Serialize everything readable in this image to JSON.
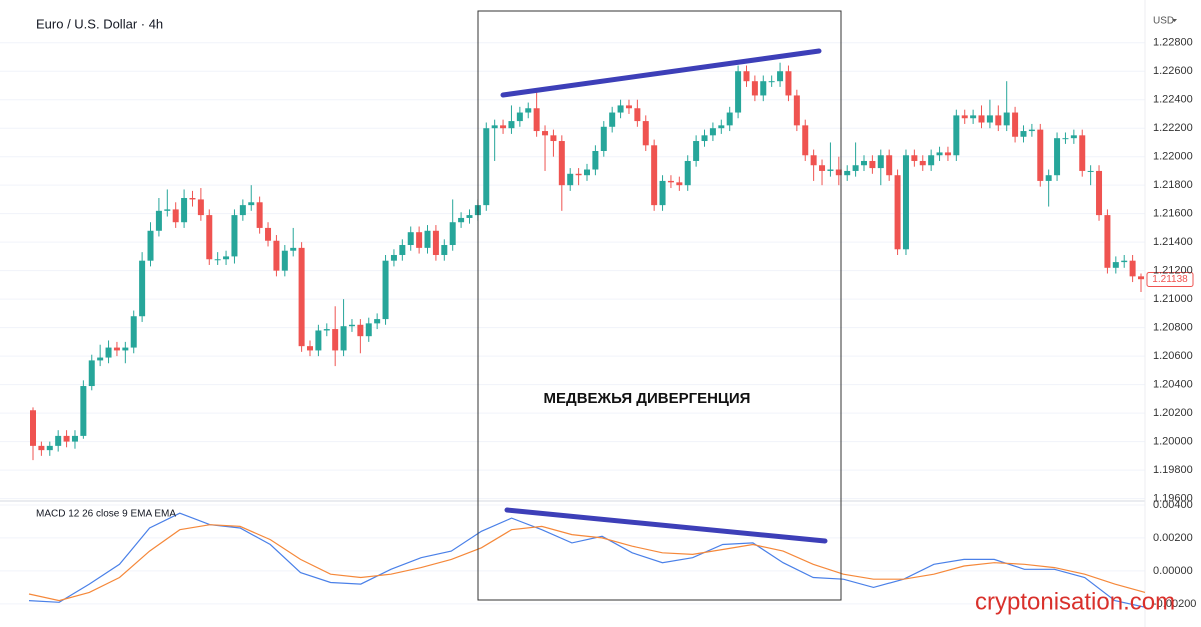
{
  "chart_data": [
    {
      "type": "candlestick",
      "title": "Euro / U.S. Dollar · 4h",
      "currency": "USD",
      "annotation": "МЕДВЕЖЬЯ ДИВЕРГЕНЦИЯ",
      "watermark": "cryptonisation.com",
      "up_color": "#26a69a",
      "down_color": "#ef5350",
      "last_price": 1.21138,
      "open": [
        1.2022,
        1.1997,
        1.1994,
        1.1997,
        1.2004,
        1.2,
        1.2004,
        1.2039,
        1.2057,
        1.2059,
        1.2066,
        1.2064,
        1.2066,
        1.2088,
        1.2127,
        1.2148,
        1.2162,
        1.2163,
        1.2154,
        1.2171,
        1.217,
        1.2159,
        1.2128,
        1.2128,
        1.213,
        1.2159,
        1.2166,
        1.2168,
        1.215,
        1.2141,
        1.212,
        1.2134,
        1.2136,
        1.2067,
        1.2064,
        1.2078,
        1.2079,
        1.2064,
        1.2081,
        1.2082,
        1.2074,
        1.2083,
        1.2086,
        1.2127,
        1.2131,
        1.2138,
        1.2147,
        1.2136,
        1.2148,
        1.2131,
        1.2138,
        1.2154,
        1.2157,
        1.2159,
        1.2166,
        1.222,
        1.2222,
        1.222,
        1.2225,
        1.2231,
        1.2234,
        1.2218,
        1.2215,
        1.2211,
        1.218,
        1.2188,
        1.2187,
        1.2191,
        1.2204,
        1.2221,
        1.2231,
        1.2236,
        1.2234,
        1.2225,
        1.2208,
        1.2166,
        1.2183,
        1.2182,
        1.218,
        1.2197,
        1.2211,
        1.2215,
        1.222,
        1.2222,
        1.2231,
        1.226,
        1.2253,
        1.2243,
        1.2253,
        1.2253,
        1.226,
        1.2243,
        1.2222,
        1.2201,
        1.2194,
        1.219,
        1.2191,
        1.2187,
        1.219,
        1.2194,
        1.2197,
        1.2192,
        1.2201,
        1.2187,
        1.2135,
        1.2201,
        1.2197,
        1.2194,
        1.2201,
        1.2203,
        1.2201,
        1.2229,
        1.2227,
        1.2229,
        1.2224,
        1.2229,
        1.2222,
        1.2231,
        1.2214,
        1.2218,
        1.2219,
        1.2183,
        1.2187,
        1.2213,
        1.2213,
        1.2215,
        1.219,
        1.219,
        1.2159,
        1.2122,
        1.2126,
        1.2127,
        1.2116
      ],
      "high": [
        1.2024,
        1.2,
        1.2,
        1.2008,
        1.2008,
        1.2008,
        1.2043,
        1.2061,
        1.2068,
        1.2071,
        1.207,
        1.207,
        1.2092,
        1.2133,
        1.2154,
        1.2171,
        1.2177,
        1.2168,
        1.2177,
        1.2176,
        1.2178,
        1.2163,
        1.2133,
        1.2134,
        1.2163,
        1.217,
        1.218,
        1.2172,
        1.2154,
        1.2145,
        1.2138,
        1.215,
        1.214,
        1.2071,
        1.2082,
        1.2083,
        1.2095,
        1.21,
        1.2086,
        1.2086,
        1.2087,
        1.209,
        1.2131,
        1.2135,
        1.2142,
        1.2151,
        1.2151,
        1.2152,
        1.2152,
        1.2142,
        1.217,
        1.2161,
        1.2163,
        1.217,
        1.2224,
        1.2226,
        1.2226,
        1.2236,
        1.2235,
        1.2238,
        1.2246,
        1.2222,
        1.2219,
        1.2215,
        1.2192,
        1.2192,
        1.2195,
        1.2208,
        1.2225,
        1.2235,
        1.224,
        1.224,
        1.224,
        1.2229,
        1.2212,
        1.2187,
        1.2187,
        1.2186,
        1.2201,
        1.2215,
        1.2219,
        1.2224,
        1.2226,
        1.2235,
        1.2264,
        1.2264,
        1.2257,
        1.2257,
        1.2257,
        1.2266,
        1.2264,
        1.2247,
        1.2226,
        1.2205,
        1.2198,
        1.221,
        1.22,
        1.2194,
        1.221,
        1.2201,
        1.2201,
        1.2205,
        1.2205,
        1.2191,
        1.2205,
        1.2205,
        1.2201,
        1.2205,
        1.2207,
        1.2207,
        1.2233,
        1.2233,
        1.2233,
        1.2236,
        1.224,
        1.2236,
        1.2253,
        1.2235,
        1.2222,
        1.2223,
        1.2223,
        1.2191,
        1.2217,
        1.2217,
        1.2219,
        1.2219,
        1.2194,
        1.2194,
        1.2163,
        1.213,
        1.2131,
        1.2131,
        1.2118
      ],
      "low": [
        1.1987,
        1.199,
        1.199,
        1.1993,
        1.1996,
        1.1995,
        1.2002,
        1.2036,
        1.2053,
        1.2055,
        1.206,
        1.2055,
        1.2062,
        1.2084,
        1.2123,
        1.2144,
        1.2158,
        1.215,
        1.215,
        1.2165,
        1.2155,
        1.2124,
        1.2124,
        1.2124,
        1.2125,
        1.2155,
        1.2162,
        1.2146,
        1.2137,
        1.2116,
        1.2116,
        1.213,
        1.2063,
        1.206,
        1.206,
        1.2074,
        1.2053,
        1.206,
        1.2077,
        1.2062,
        1.207,
        1.2079,
        1.2082,
        1.2123,
        1.2127,
        1.2134,
        1.2132,
        1.2132,
        1.2127,
        1.2127,
        1.2134,
        1.215,
        1.2153,
        1.2155,
        1.2162,
        1.2197,
        1.2216,
        1.2216,
        1.2221,
        1.2227,
        1.2214,
        1.219,
        1.22,
        1.2162,
        1.2176,
        1.218,
        1.2183,
        1.2187,
        1.22,
        1.2217,
        1.2227,
        1.223,
        1.2221,
        1.2204,
        1.2162,
        1.2162,
        1.2178,
        1.2176,
        1.2176,
        1.2193,
        1.2207,
        1.2211,
        1.2216,
        1.2218,
        1.2227,
        1.2249,
        1.2239,
        1.2239,
        1.2249,
        1.2249,
        1.2239,
        1.2218,
        1.2197,
        1.2183,
        1.218,
        1.2186,
        1.218,
        1.2183,
        1.2186,
        1.219,
        1.2188,
        1.218,
        1.2183,
        1.2131,
        1.2131,
        1.2193,
        1.219,
        1.219,
        1.2197,
        1.2197,
        1.2197,
        1.2223,
        1.2223,
        1.222,
        1.222,
        1.2218,
        1.2218,
        1.221,
        1.221,
        1.2214,
        1.2179,
        1.2165,
        1.2183,
        1.2209,
        1.2209,
        1.2186,
        1.218,
        1.2155,
        1.2118,
        1.2118,
        1.2122,
        1.2112,
        1.2105
      ],
      "close": [
        1.1997,
        1.1994,
        1.1997,
        1.2004,
        1.2,
        1.2004,
        1.2039,
        1.2057,
        1.2059,
        1.2066,
        1.2064,
        1.2066,
        1.2088,
        1.2127,
        1.2148,
        1.2162,
        1.2163,
        1.2154,
        1.2171,
        1.217,
        1.2159,
        1.2128,
        1.2128,
        1.213,
        1.2159,
        1.2166,
        1.2168,
        1.215,
        1.2141,
        1.212,
        1.2134,
        1.2136,
        1.2067,
        1.2064,
        1.2078,
        1.2079,
        1.2064,
        1.2081,
        1.2082,
        1.2074,
        1.2083,
        1.2086,
        1.2127,
        1.2131,
        1.2138,
        1.2147,
        1.2136,
        1.2148,
        1.2131,
        1.2138,
        1.2154,
        1.2157,
        1.2159,
        1.2166,
        1.222,
        1.2222,
        1.222,
        1.2225,
        1.2231,
        1.2234,
        1.2218,
        1.2215,
        1.2211,
        1.218,
        1.2188,
        1.2187,
        1.2191,
        1.2204,
        1.2221,
        1.2231,
        1.2236,
        1.2234,
        1.2225,
        1.2208,
        1.2166,
        1.2183,
        1.2182,
        1.218,
        1.2197,
        1.2211,
        1.2215,
        1.222,
        1.2222,
        1.2231,
        1.226,
        1.2253,
        1.2243,
        1.2253,
        1.2253,
        1.226,
        1.2243,
        1.2222,
        1.2201,
        1.2194,
        1.219,
        1.2191,
        1.2187,
        1.219,
        1.2194,
        1.2197,
        1.2192,
        1.2201,
        1.2187,
        1.2135,
        1.2201,
        1.2197,
        1.2194,
        1.2201,
        1.2203,
        1.2201,
        1.2229,
        1.2227,
        1.2229,
        1.2224,
        1.2229,
        1.2222,
        1.2231,
        1.2214,
        1.2218,
        1.2219,
        1.2183,
        1.2187,
        1.2213,
        1.2213,
        1.2215,
        1.219,
        1.219,
        1.2159,
        1.2122,
        1.2126,
        1.2127,
        1.2116,
        1.2114
      ],
      "ylim": [
        1.1959,
        1.231
      ],
      "yticks": [
        {
          "value": 1.228,
          "label": "1.22800"
        },
        {
          "value": 1.226,
          "label": "1.22600"
        },
        {
          "value": 1.224,
          "label": "1.22400"
        },
        {
          "value": 1.222,
          "label": "1.22200"
        },
        {
          "value": 1.22,
          "label": "1.22000"
        },
        {
          "value": 1.218,
          "label": "1.21800"
        },
        {
          "value": 1.216,
          "label": "1.21600"
        },
        {
          "value": 1.214,
          "label": "1.21400"
        },
        {
          "value": 1.212,
          "label": "1.21200"
        },
        {
          "value": 1.21,
          "label": "1.21000"
        },
        {
          "value": 1.208,
          "label": "1.20800"
        },
        {
          "value": 1.206,
          "label": "1.20600"
        },
        {
          "value": 1.204,
          "label": "1.20400"
        },
        {
          "value": 1.202,
          "label": "1.20200"
        },
        {
          "value": 1.2,
          "label": "1.20000"
        },
        {
          "value": 1.198,
          "label": "1.19800"
        },
        {
          "value": 1.196,
          "label": "1.19600"
        }
      ],
      "grid": true
    },
    {
      "type": "line",
      "title": "MACD 12 26 close 9 EMA EMA",
      "series": [
        {
          "name": "MACD",
          "color": "#4a80e8",
          "values": [
            -0.0018,
            -0.0019,
            -0.0008,
            0.0004,
            0.0026,
            0.0035,
            0.0028,
            0.0026,
            0.0016,
            -0.0001,
            -0.0007,
            -0.0008,
            0.0001,
            0.0008,
            0.0012,
            0.0024,
            0.0032,
            0.0025,
            0.0017,
            0.0021,
            0.0011,
            0.0005,
            0.0008,
            0.0016,
            0.0017,
            0.0005,
            -0.0004,
            -0.0005,
            -0.001,
            -0.0005,
            0.0004,
            0.0007,
            0.0007,
            0.0001,
            0.0001,
            -0.0004,
            -0.0018,
            -0.0022
          ]
        },
        {
          "name": "Signal",
          "color": "#f5883a",
          "values": [
            -0.0014,
            -0.0018,
            -0.0013,
            -0.0004,
            0.0012,
            0.0025,
            0.0028,
            0.0027,
            0.0019,
            0.0007,
            -0.0002,
            -0.0004,
            -0.0002,
            0.0002,
            0.0007,
            0.0014,
            0.0025,
            0.0027,
            0.0022,
            0.002,
            0.0015,
            0.0011,
            0.001,
            0.0013,
            0.0016,
            0.0012,
            0.0004,
            -0.0002,
            -0.0005,
            -0.0005,
            -0.0002,
            0.0003,
            0.0005,
            0.0004,
            0.0002,
            -0.0002,
            -0.0008,
            -0.0013
          ]
        }
      ],
      "ylim": [
        -0.0034,
        0.0043
      ],
      "yticks": [
        {
          "value": 0.004,
          "label": "0.00400"
        },
        {
          "value": 0.002,
          "label": "0.00200"
        },
        {
          "value": 0,
          "label": "0.00000"
        },
        {
          "value": -0.002,
          "label": "-0.00200"
        }
      ],
      "grid": true
    }
  ]
}
